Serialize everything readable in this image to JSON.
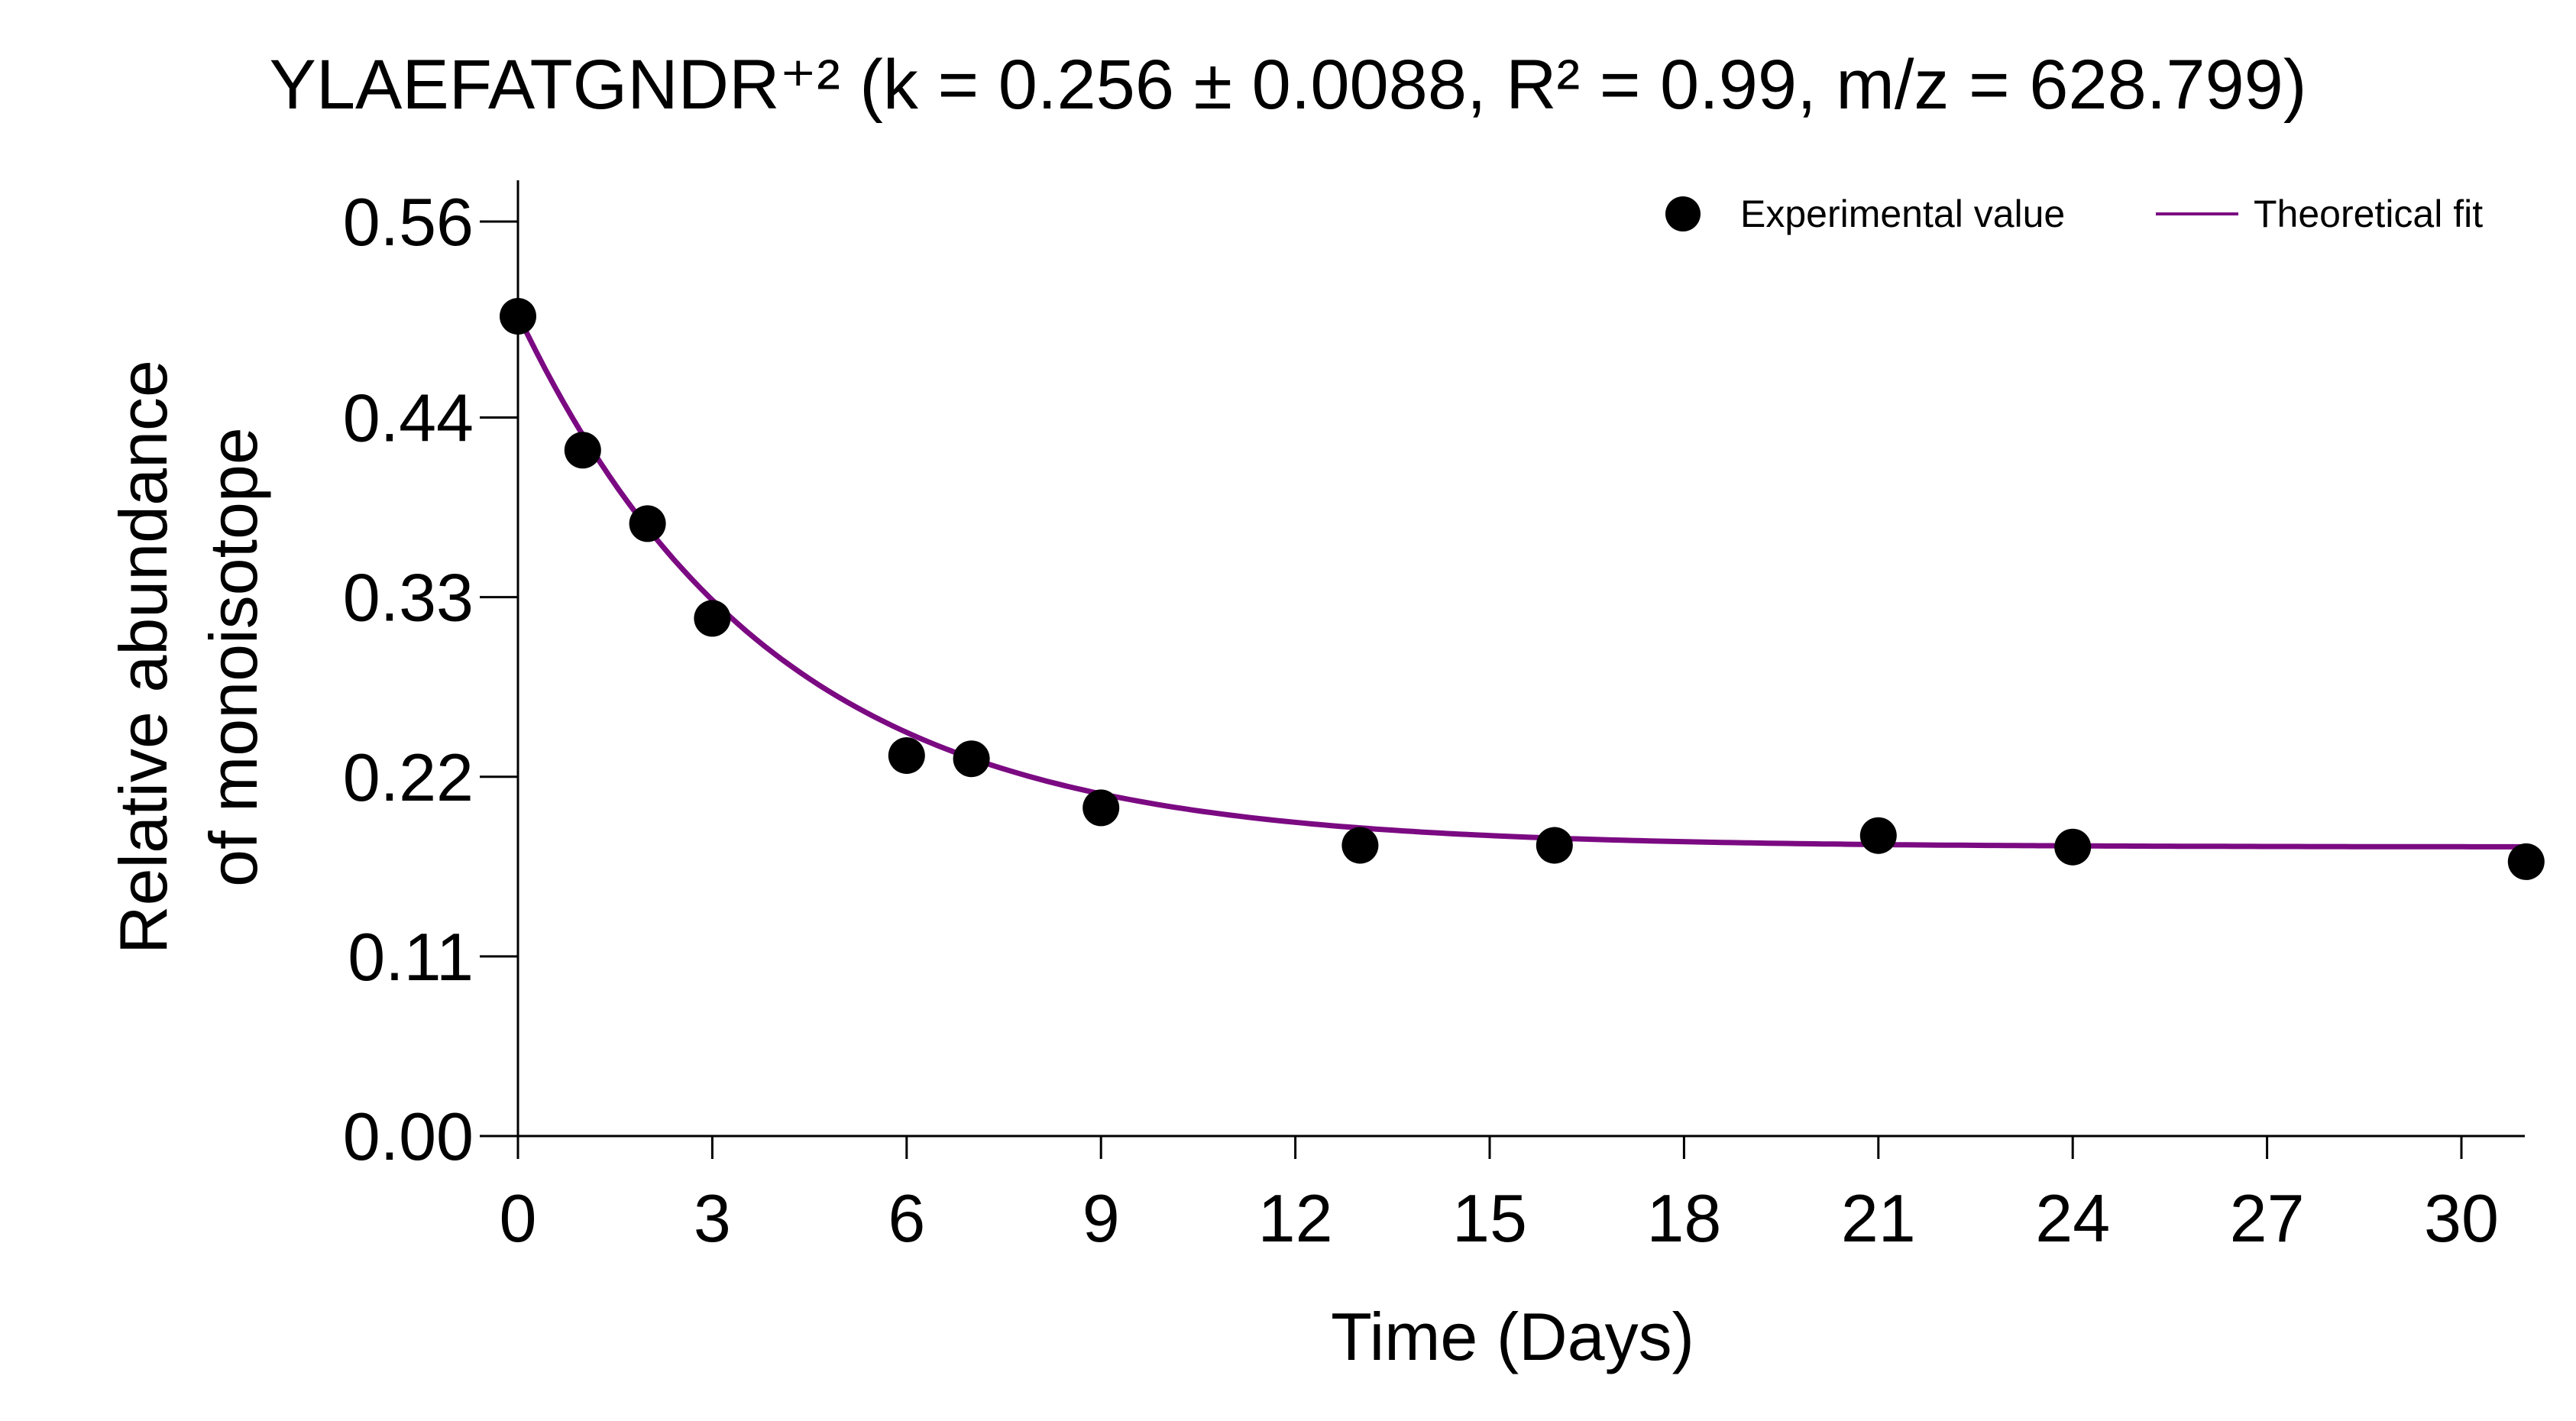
{
  "chart_data": {
    "type": "scatter",
    "title": "YLAEFATGNDR⁺² (k = 0.256 ± 0.0088, R² = 0.99, m/z = 628.799)",
    "xlabel": "Time (Days)",
    "ylabel_lines": [
      "Relative abundance",
      "of monoisotope"
    ],
    "xlim": [
      0,
      31
    ],
    "ylim": [
      0,
      0.56
    ],
    "xticks": [
      0,
      3,
      6,
      9,
      12,
      15,
      18,
      21,
      24,
      27,
      30
    ],
    "yticks": [
      0.0,
      0.11,
      0.22,
      0.33,
      0.44,
      0.56
    ],
    "ytick_labels": [
      "0.00",
      "0.11",
      "0.22",
      "0.33",
      "0.44",
      "0.56"
    ],
    "xtick_labels": [
      "0",
      "3",
      "6",
      "9",
      "12",
      "15",
      "18",
      "21",
      "24",
      "27",
      "30"
    ],
    "grid": false,
    "legend": "top-right",
    "series": [
      {
        "name": "Experimental value",
        "kind": "scatter",
        "color": "#000000",
        "x": [
          0,
          1,
          2,
          3,
          6,
          7,
          9,
          13,
          16,
          21,
          24,
          31
        ],
        "y": [
          0.502,
          0.42,
          0.375,
          0.317,
          0.233,
          0.231,
          0.201,
          0.178,
          0.178,
          0.184,
          0.177,
          0.168
        ]
      },
      {
        "name": "Theoretical fit",
        "kind": "line",
        "color": "#7b0a82",
        "model": {
          "a": 0.326,
          "k": 0.256,
          "c": 0.177
        }
      }
    ]
  }
}
